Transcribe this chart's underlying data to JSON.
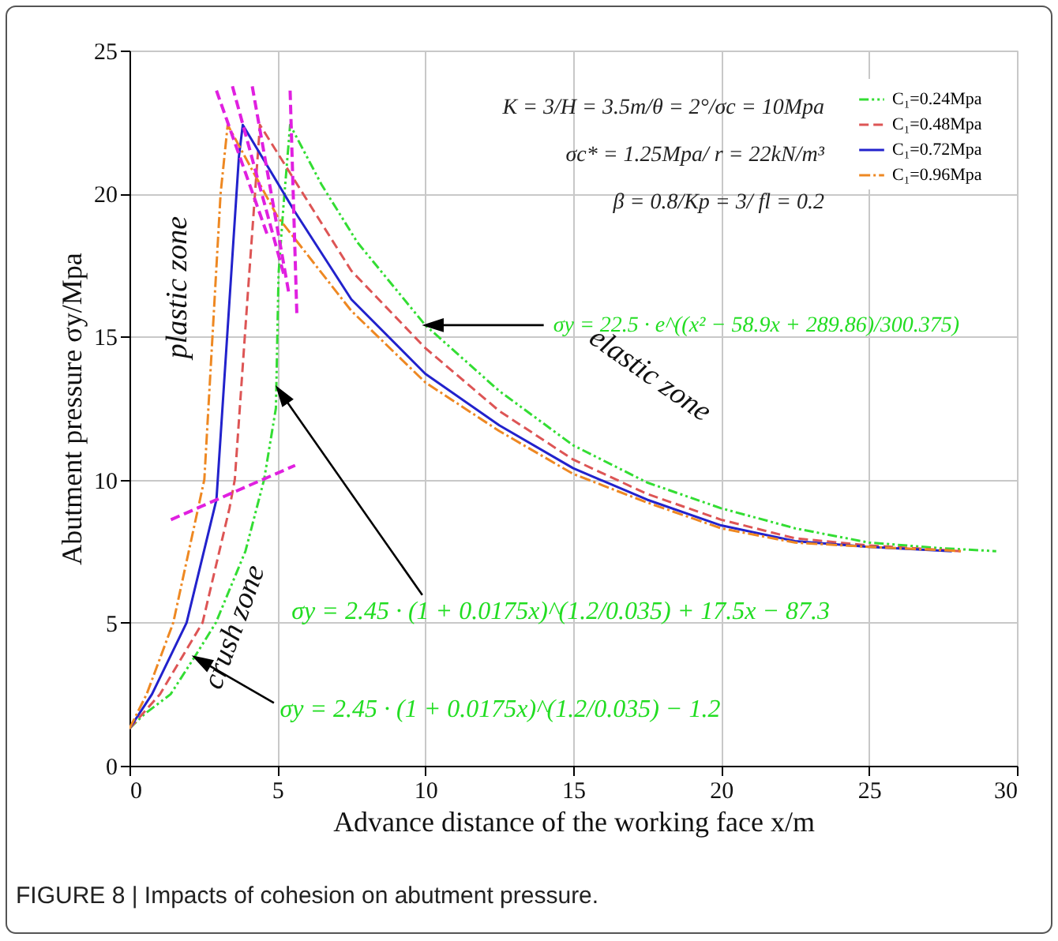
{
  "chart_data": {
    "type": "line",
    "xlabel": "Advance distance of the working face x/m",
    "ylabel": "Abutment pressure σy/Mpa",
    "xlim": [
      0,
      30
    ],
    "xticks": [
      0,
      5,
      10,
      15,
      20,
      25,
      30
    ],
    "ylim": [
      0,
      25
    ],
    "yticks": [
      0,
      5,
      10,
      15,
      20,
      25
    ],
    "grid": true,
    "legend": "top right",
    "series": [
      {
        "name": "C₁=0.24Mpa",
        "color": "#33dd33",
        "line_style": "dashdotdot",
        "x": [
          0,
          0.5,
          1.39,
          2.2,
          2.92,
          3.92,
          4.55,
          4.95,
          5.04,
          5.2,
          5.43,
          6.5,
          7.7,
          10,
          12.5,
          15,
          17.5,
          20,
          22.5,
          25,
          27.5,
          29.3
        ],
        "values": [
          1.3,
          1.8,
          2.5,
          3.8,
          5,
          7.5,
          10,
          12.5,
          17.2,
          19.5,
          22.4,
          20.3,
          18.3,
          15.4,
          13.1,
          11.2,
          9.9,
          9.0,
          8.3,
          7.8,
          7.6,
          7.5
        ]
      },
      {
        "name": "C₁=0.48Mpa",
        "color": "#dd5555",
        "line_style": "dashed",
        "x": [
          0,
          1.03,
          2.47,
          3.38,
          3.56,
          4.0,
          4.41,
          5.5,
          7.5,
          10,
          12.5,
          15,
          17.5,
          20,
          22.5,
          25,
          28.1
        ],
        "values": [
          1.3,
          2.5,
          5,
          9,
          10,
          16.5,
          22.4,
          20.6,
          17.3,
          14.6,
          12.4,
          10.7,
          9.5,
          8.6,
          7.95,
          7.7,
          7.5
        ]
      },
      {
        "name": "C₁=0.72Mpa",
        "color": "#2222cc",
        "line_style": "solid",
        "x": [
          0,
          0.76,
          1.93,
          2.94,
          3.7,
          3.83,
          5.57,
          7.5,
          10,
          12.5,
          15,
          17.5,
          20,
          22.5,
          25,
          27.8
        ],
        "values": [
          1.3,
          2.5,
          5,
          9.3,
          21.3,
          22.4,
          19.4,
          16.3,
          13.7,
          11.9,
          10.4,
          9.3,
          8.4,
          7.85,
          7.65,
          7.5
        ]
      },
      {
        "name": "C₁=0.96Mpa",
        "color": "#ee8822",
        "line_style": "dashdot",
        "x": [
          0,
          0.58,
          1.48,
          2.53,
          3.08,
          3.32,
          5,
          7.5,
          10,
          12.5,
          15,
          17.5,
          20,
          22.5,
          25,
          28.2
        ],
        "values": [
          1.3,
          2.5,
          5,
          10,
          20,
          22.4,
          19.2,
          15.9,
          13.4,
          11.7,
          10.2,
          9.2,
          8.3,
          7.8,
          7.65,
          7.5
        ]
      },
      {
        "color": "#e020e0",
        "line_style": "dashed",
        "x": [
          1.4,
          5.6
        ],
        "values": [
          8.6,
          10.5
        ]
      },
      {
        "color": "#e020e0",
        "line_style": "dashed",
        "x": [
          2.94,
          4.68
        ],
        "values": [
          23.6,
          18.5
        ]
      },
      {
        "color": "#e020e0",
        "line_style": "dashed",
        "x": [
          3.48,
          5.21
        ],
        "values": [
          23.75,
          17.2
        ]
      },
      {
        "color": "#e020e0",
        "line_style": "dashed",
        "x": [
          4.15,
          5.39
        ],
        "values": [
          23.75,
          16.5
        ]
      },
      {
        "color": "#e020e0",
        "line_style": "dashed",
        "x": [
          5.43,
          5.66
        ],
        "values": [
          23.6,
          15.7
        ]
      }
    ],
    "annotations": [
      "K = 3/H = 3.5m/θ = 2°/σc = 10Mpa",
      "σc* = 1.25Mpa/ r = 22kN/m³",
      "β = 0.8/Kp = 3/ fl = 0.2",
      "plastic zone",
      "crush zone",
      "elastic zone",
      {
        "text": "σy = 22.5 · e^((x² − 58.9x + 289.86)/300.375)",
        "x": 10,
        "y": 15.4
      },
      {
        "text": "σy = 2.45 · (1 + 0.0175x)^(1.2/0.035) + 17.5x − 87.3",
        "x": 5.0,
        "y": 13.2
      },
      {
        "text": "σy = 2.45 · (1 + 0.0175x)^(1.2/0.035) − 1.2",
        "x": 2.2,
        "y": 3.8
      },
      "FIGURE 8 | Impacts of cohesion on abutment pressure."
    ]
  }
}
